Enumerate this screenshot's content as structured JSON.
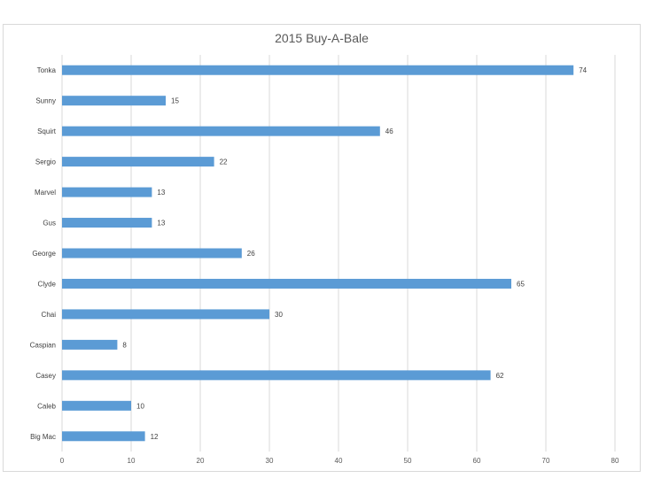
{
  "chart_data": {
    "type": "bar",
    "orientation": "horizontal",
    "title": "2015 Buy-A-Bale",
    "xlabel": "",
    "ylabel": "",
    "categories": [
      "Tonka",
      "Sunny",
      "Squirt",
      "Sergio",
      "Marvel",
      "Gus",
      "George",
      "Clyde",
      "Chai",
      "Caspian",
      "Casey",
      "Caleb",
      "Big Mac"
    ],
    "values": [
      74,
      15,
      46,
      22,
      13,
      13,
      26,
      65,
      30,
      8,
      62,
      10,
      12
    ],
    "xlim": [
      0,
      80
    ],
    "xticks": [
      0,
      10,
      20,
      30,
      40,
      50,
      60,
      70,
      80
    ],
    "grid": true,
    "data_labels": true,
    "bar_color": "#5b9bd5",
    "grid_color": "#d9d9d9"
  }
}
